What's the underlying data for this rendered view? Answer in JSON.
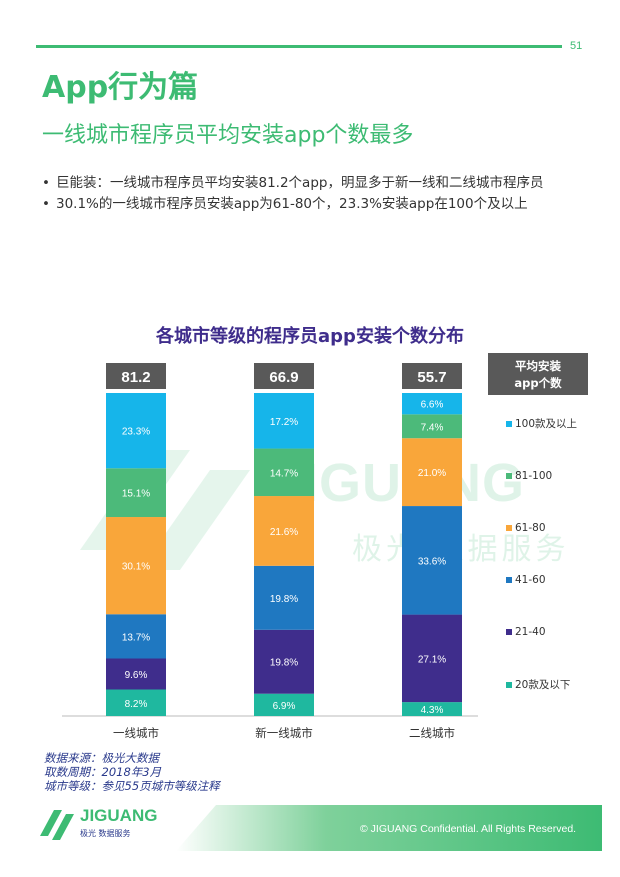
{
  "page_number": "51",
  "section_title": "App行为篇",
  "subtitle": "一线城市程序员平均安装app个数最多",
  "bullets": [
    "巨能装：一线城市程序员平均安装81.2个app，明显多于新一线和二线城市程序员",
    "30.1%的一线城市程序员安装app为61-80个，23.3%安装app在100个及以上"
  ],
  "bullet_symbol": "•",
  "watermark": {
    "brand": "JIGUANG",
    "sub": "极光 数据服务"
  },
  "chart_data": {
    "type": "bar",
    "stacked": true,
    "title": "各城市等级的程序员app安装个数分布",
    "categories": [
      "一线城市",
      "新一线城市",
      "二线城市"
    ],
    "averages": [
      "81.2",
      "66.9",
      "55.7"
    ],
    "average_label": "平均安装app个数",
    "series": [
      {
        "name": "20款及以下",
        "color": "#1fb89f",
        "values": [
          8.2,
          6.9,
          4.3
        ]
      },
      {
        "name": "21-40",
        "color": "#3f2d8c",
        "values": [
          9.6,
          19.8,
          27.1
        ]
      },
      {
        "name": "41-60",
        "color": "#1f78c1",
        "values": [
          13.7,
          19.8,
          33.6
        ]
      },
      {
        "name": "61-80",
        "color": "#f9a63a",
        "values": [
          30.1,
          21.6,
          21.0
        ]
      },
      {
        "name": "81-100",
        "color": "#4cba7a",
        "values": [
          15.1,
          14.7,
          7.4
        ]
      },
      {
        "name": "100款及以上",
        "color": "#16b5ea",
        "values": [
          23.3,
          17.2,
          6.6
        ]
      }
    ],
    "value_labels": [
      [
        "8.2%",
        "6.9%",
        "4.3%"
      ],
      [
        "9.6%",
        "19.8%",
        "27.1%"
      ],
      [
        "13.7%",
        "19.8%",
        "33.6%"
      ],
      [
        "30.1%",
        "21.6%",
        "21.0%"
      ],
      [
        "15.1%",
        "14.7%",
        "7.4%"
      ],
      [
        "23.3%",
        "17.2%",
        "6.6%"
      ]
    ],
    "legend_position": "right",
    "grid": false
  },
  "source_lines": [
    "数据来源：极光大数据",
    "取数周期：2018年3月",
    "城市等级：参见55页城市等级注释"
  ],
  "footer": {
    "copyright": "© JIGUANG Confidential. All Rights Reserved.",
    "logo_text": "JIGUANG",
    "logo_sub": "极光 数据服务"
  }
}
